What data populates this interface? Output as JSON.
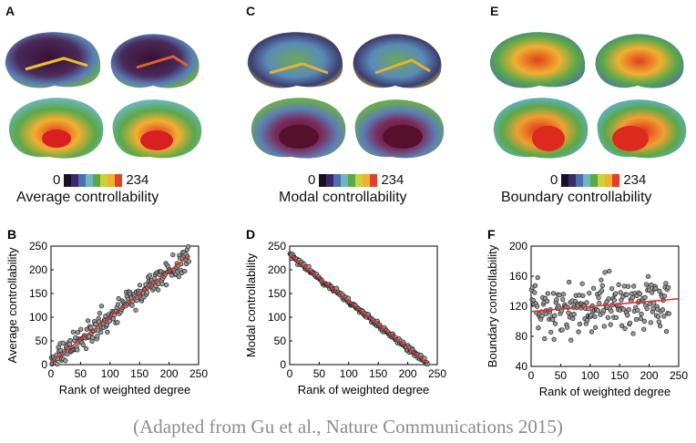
{
  "panels": [
    {
      "letter": "A",
      "caption": "Average controllability",
      "scale_min": "0",
      "scale_max": "234",
      "style": "average"
    },
    {
      "letter": "C",
      "caption": "Modal controllability",
      "scale_min": "0",
      "scale_max": "234",
      "style": "modal"
    },
    {
      "letter": "E",
      "caption": "Boundary controllability",
      "scale_min": "0",
      "scale_max": "234",
      "style": "boundary"
    }
  ],
  "colorbar": [
    "#1a1023",
    "#3b2a6b",
    "#4d6fb0",
    "#6fb6c2",
    "#5aa84a",
    "#c9d23a",
    "#f0b030",
    "#e2402a"
  ],
  "chart_data": [
    {
      "letter": "B",
      "type": "scatter",
      "title": "",
      "xlabel": "Rank of weighted degree",
      "ylabel": "Average controllability",
      "xlim": [
        0,
        250
      ],
      "ylim": [
        0,
        250
      ],
      "xticks": [
        0,
        50,
        100,
        150,
        200,
        250
      ],
      "yticks": [
        0,
        50,
        100,
        150,
        200,
        250
      ],
      "trend": {
        "x": [
          0,
          234
        ],
        "y": [
          5,
          230
        ],
        "color": "#e03030"
      },
      "points": {
        "n": 234,
        "slope": 0.96,
        "intercept": 5,
        "noise": 28,
        "seed": 11
      }
    },
    {
      "letter": "D",
      "type": "scatter",
      "title": "",
      "xlabel": "Rank of weighted degree",
      "ylabel": "Modal controllability",
      "xlim": [
        0,
        250
      ],
      "ylim": [
        0,
        250
      ],
      "xticks": [
        0,
        50,
        100,
        150,
        200,
        250
      ],
      "yticks": [
        0,
        50,
        100,
        150,
        200,
        250
      ],
      "trend": {
        "x": [
          0,
          234
        ],
        "y": [
          232,
          2
        ],
        "color": "#e03030"
      },
      "points": {
        "n": 234,
        "slope": -0.985,
        "intercept": 232,
        "noise": 7,
        "seed": 23
      }
    },
    {
      "letter": "F",
      "type": "scatter",
      "title": "",
      "xlabel": "Rank of weighted degree",
      "ylabel": "Boundary controllability",
      "xlim": [
        0,
        250
      ],
      "ylim": [
        40,
        200
      ],
      "xticks": [
        0,
        50,
        100,
        150,
        200,
        250
      ],
      "yticks": [
        40,
        80,
        120,
        160,
        200
      ],
      "trend": {
        "x": [
          0,
          250
        ],
        "y": [
          113,
          130
        ],
        "color": "#e03030"
      },
      "points": {
        "n": 220,
        "slope": 0.07,
        "intercept": 113,
        "noise": 40,
        "seed": 37
      }
    }
  ],
  "credit": "(Adapted from Gu et al., Nature Communications 2015)"
}
